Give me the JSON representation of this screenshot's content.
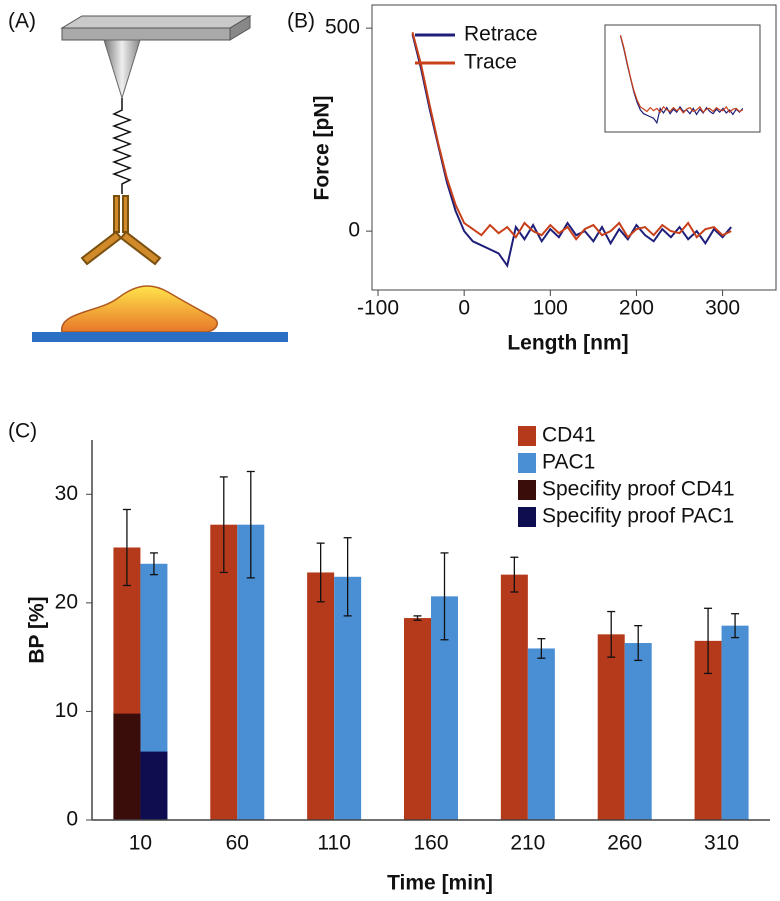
{
  "panels": [
    "(A)",
    "(B)",
    "(C)"
  ],
  "chart_data": [
    {
      "type": "line",
      "x_label": "Length [nm]",
      "y_label": "Force [pN]",
      "x": [
        -60,
        -50,
        -40,
        -30,
        -20,
        -10,
        0,
        10,
        20,
        30,
        40,
        50,
        60,
        70,
        80,
        90,
        100,
        110,
        120,
        130,
        140,
        150,
        160,
        170,
        180,
        190,
        200,
        210,
        220,
        230,
        240,
        250,
        260,
        270,
        280,
        290,
        300,
        310
      ],
      "series": [
        {
          "name": "Retrace",
          "color": "#1f1f7a",
          "values": [
            485,
            400,
            300,
            210,
            120,
            50,
            0,
            -25,
            -35,
            -45,
            -55,
            -85,
            10,
            -20,
            15,
            -25,
            5,
            -15,
            20,
            -10,
            0,
            -25,
            10,
            -30,
            5,
            -20,
            15,
            -10,
            -25,
            5,
            -15,
            10,
            -20,
            0,
            -30,
            5,
            -15,
            10
          ]
        },
        {
          "name": "Trace",
          "color": "#c8401a",
          "values": [
            490,
            410,
            310,
            215,
            130,
            65,
            20,
            5,
            -10,
            15,
            -5,
            10,
            -15,
            20,
            0,
            -10,
            15,
            -5,
            10,
            -20,
            5,
            15,
            -10,
            0,
            20,
            -15,
            5,
            10,
            -10,
            15,
            0,
            -5,
            20,
            -15,
            5,
            10,
            -10,
            0
          ]
        }
      ],
      "xlim": [
        -107,
        362
      ],
      "xticks": [
        -100,
        0,
        100,
        200,
        300
      ],
      "ylim": [
        -145,
        557
      ],
      "yticks": [
        0,
        500
      ],
      "inset": true
    },
    {
      "type": "bar",
      "x_label": "Time [min]",
      "y_label": "BP [%]",
      "categories": [
        "10",
        "60",
        "110",
        "160",
        "210",
        "260",
        "310"
      ],
      "series": [
        {
          "name": "CD41",
          "color": "#b5391b",
          "values": [
            25.1,
            27.2,
            22.8,
            18.6,
            22.6,
            17.1,
            16.5
          ],
          "errors": [
            3.5,
            4.4,
            2.7,
            0.2,
            1.6,
            2.1,
            3.0
          ]
        },
        {
          "name": "PAC1",
          "color": "#4a8ed4",
          "values": [
            23.6,
            27.2,
            22.4,
            20.6,
            15.8,
            16.3,
            17.9
          ],
          "errors": [
            1.0,
            4.9,
            3.6,
            4.0,
            0.9,
            1.6,
            1.1
          ]
        },
        {
          "name": "Specifity proof CD41",
          "color": "#3a0d0a",
          "values": [
            9.8,
            null,
            null,
            null,
            null,
            null,
            null
          ]
        },
        {
          "name": "Specifity proof PAC1",
          "color": "#0d0d50",
          "values": [
            6.3,
            null,
            null,
            null,
            null,
            null,
            null
          ]
        }
      ],
      "ylim": [
        0,
        35
      ],
      "yticks": [
        0,
        10,
        20,
        30
      ]
    }
  ]
}
